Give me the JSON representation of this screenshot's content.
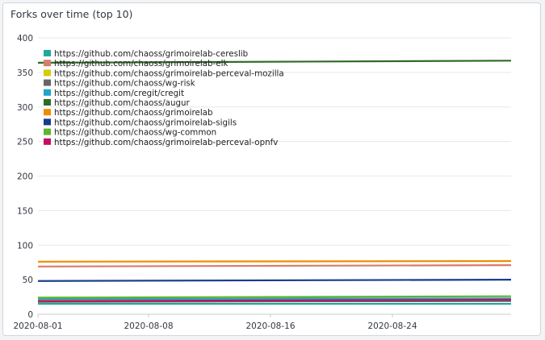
{
  "panel": {
    "title": "Forks over time (top 10)"
  },
  "chart_data": {
    "type": "line",
    "title": "Forks over time (top 10)",
    "xlabel": "",
    "ylabel": "",
    "x_ticks": [
      "2020-08-01",
      "2020-08-08",
      "2020-08-16",
      "2020-08-24"
    ],
    "x": [
      "2020-08-01",
      "2020-08-31"
    ],
    "ylim": [
      0,
      400
    ],
    "y_ticks": [
      0,
      50,
      100,
      150,
      200,
      250,
      300,
      350,
      400
    ],
    "grid": "horizontal",
    "legend_position": "top-left",
    "series": [
      {
        "name": "https://github.com/chaoss/grimoirelab-cereslib",
        "color": "#20a9a0",
        "values": [
          15,
          15
        ]
      },
      {
        "name": "https://github.com/chaoss/grimoirelab-elk",
        "color": "#d97a6e",
        "values": [
          69,
          71
        ]
      },
      {
        "name": "https://github.com/chaoss/grimoirelab-perceval-mozilla",
        "color": "#d6cc00",
        "values": [
          20,
          22
        ]
      },
      {
        "name": "https://github.com/chaoss/wg-risk",
        "color": "#666666",
        "values": [
          18,
          19
        ]
      },
      {
        "name": "https://github.com/cregit/cregit",
        "color": "#1ea5c8",
        "values": [
          22,
          23
        ]
      },
      {
        "name": "https://github.com/chaoss/augur",
        "color": "#2e6b25",
        "values": [
          364,
          367
        ]
      },
      {
        "name": "https://github.com/chaoss/grimoirelab",
        "color": "#f08c00",
        "values": [
          76,
          77
        ]
      },
      {
        "name": "https://github.com/chaoss/grimoirelab-sigils",
        "color": "#163c8c",
        "values": [
          48,
          50
        ]
      },
      {
        "name": "https://github.com/chaoss/wg-common",
        "color": "#5fb52c",
        "values": [
          24,
          26
        ]
      },
      {
        "name": "https://github.com/chaoss/grimoirelab-perceval-opnfv",
        "color": "#c70d63",
        "values": [
          19,
          21
        ]
      }
    ]
  }
}
